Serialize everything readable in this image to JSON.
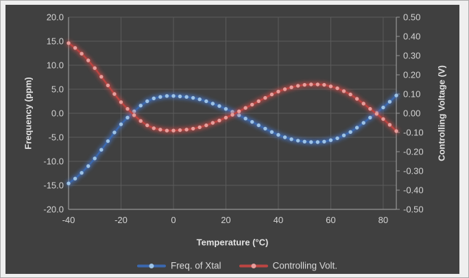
{
  "colors": {
    "page_bg": "#efefef",
    "chart_bg": "#404040",
    "grid": "#5c5c5c",
    "axis": "#979797",
    "tick_text": "#d4d4d4",
    "title_text": "#e2e2e2"
  },
  "chart_data": {
    "type": "line",
    "title": "",
    "xlabel": "Temperature (°C)",
    "x_ticks": [
      -40,
      -20,
      0,
      20,
      40,
      60,
      80
    ],
    "x_range": [
      -40,
      85
    ],
    "y_left": {
      "label": "Frequency (ppm)",
      "range": [
        -20,
        20
      ],
      "step": 5,
      "tick_labels": [
        "20.0",
        "15.0",
        "10.0",
        "5.0",
        "0.0",
        "-5.0",
        "-10.0",
        "-15.0",
        "-20.0"
      ]
    },
    "y_right": {
      "label": "Controlling Voltage (V)",
      "range": [
        -0.5,
        0.5
      ],
      "step": 0.1,
      "tick_labels": [
        "0.50",
        "0.40",
        "0.30",
        "0.20",
        "0.10",
        "0.00",
        "-0.10",
        "-0.20",
        "-0.30",
        "-0.40",
        "-0.50"
      ]
    },
    "grid": true,
    "legend_position": "bottom",
    "x": [
      -40,
      -37.5,
      -35,
      -32.5,
      -30,
      -27.5,
      -25,
      -22.5,
      -20,
      -17.5,
      -15,
      -12.5,
      -10,
      -7.5,
      -5,
      -2.5,
      0,
      2.5,
      5,
      7.5,
      10,
      12.5,
      15,
      17.5,
      20,
      22.5,
      25,
      27.5,
      30,
      32.5,
      35,
      37.5,
      40,
      42.5,
      45,
      47.5,
      50,
      52.5,
      55,
      57.5,
      60,
      62.5,
      65,
      67.5,
      70,
      72.5,
      75,
      77.5,
      80,
      82.5,
      85
    ],
    "series": [
      {
        "name": "Freq. of Xtal",
        "axis": "left",
        "line_color": "#3b68ae",
        "marker_color": "#9dc3e6",
        "glow_color": "rgba(70,120,205,0.55)",
        "values": [
          -14.6,
          -13.6,
          -12.4,
          -11.0,
          -9.4,
          -7.6,
          -5.8,
          -4.0,
          -2.3,
          -0.9,
          0.4,
          1.6,
          2.5,
          3.1,
          3.4,
          3.6,
          3.6,
          3.5,
          3.4,
          3.2,
          2.9,
          2.5,
          2.0,
          1.5,
          0.9,
          0.3,
          -0.4,
          -1.1,
          -1.8,
          -2.5,
          -3.2,
          -3.9,
          -4.5,
          -5.0,
          -5.4,
          -5.7,
          -5.9,
          -6.0,
          -6.0,
          -5.9,
          -5.6,
          -5.2,
          -4.6,
          -3.9,
          -3.0,
          -2.0,
          -0.9,
          0.1,
          1.2,
          2.4,
          3.7
        ]
      },
      {
        "name": "Controlling Volt.",
        "axis": "right",
        "line_color": "#bc4542",
        "marker_color": "#e79d9b",
        "glow_color": "rgba(205,75,72,0.55)",
        "values": [
          0.365,
          0.34,
          0.31,
          0.275,
          0.235,
          0.19,
          0.145,
          0.1,
          0.058,
          0.023,
          -0.01,
          -0.04,
          -0.063,
          -0.078,
          -0.085,
          -0.09,
          -0.09,
          -0.088,
          -0.085,
          -0.08,
          -0.073,
          -0.063,
          -0.05,
          -0.038,
          -0.023,
          -0.008,
          0.01,
          0.028,
          0.045,
          0.063,
          0.08,
          0.098,
          0.113,
          0.125,
          0.135,
          0.143,
          0.148,
          0.15,
          0.15,
          0.148,
          0.14,
          0.13,
          0.115,
          0.098,
          0.075,
          0.05,
          0.023,
          -0.003,
          -0.03,
          -0.06,
          -0.093
        ]
      }
    ]
  }
}
